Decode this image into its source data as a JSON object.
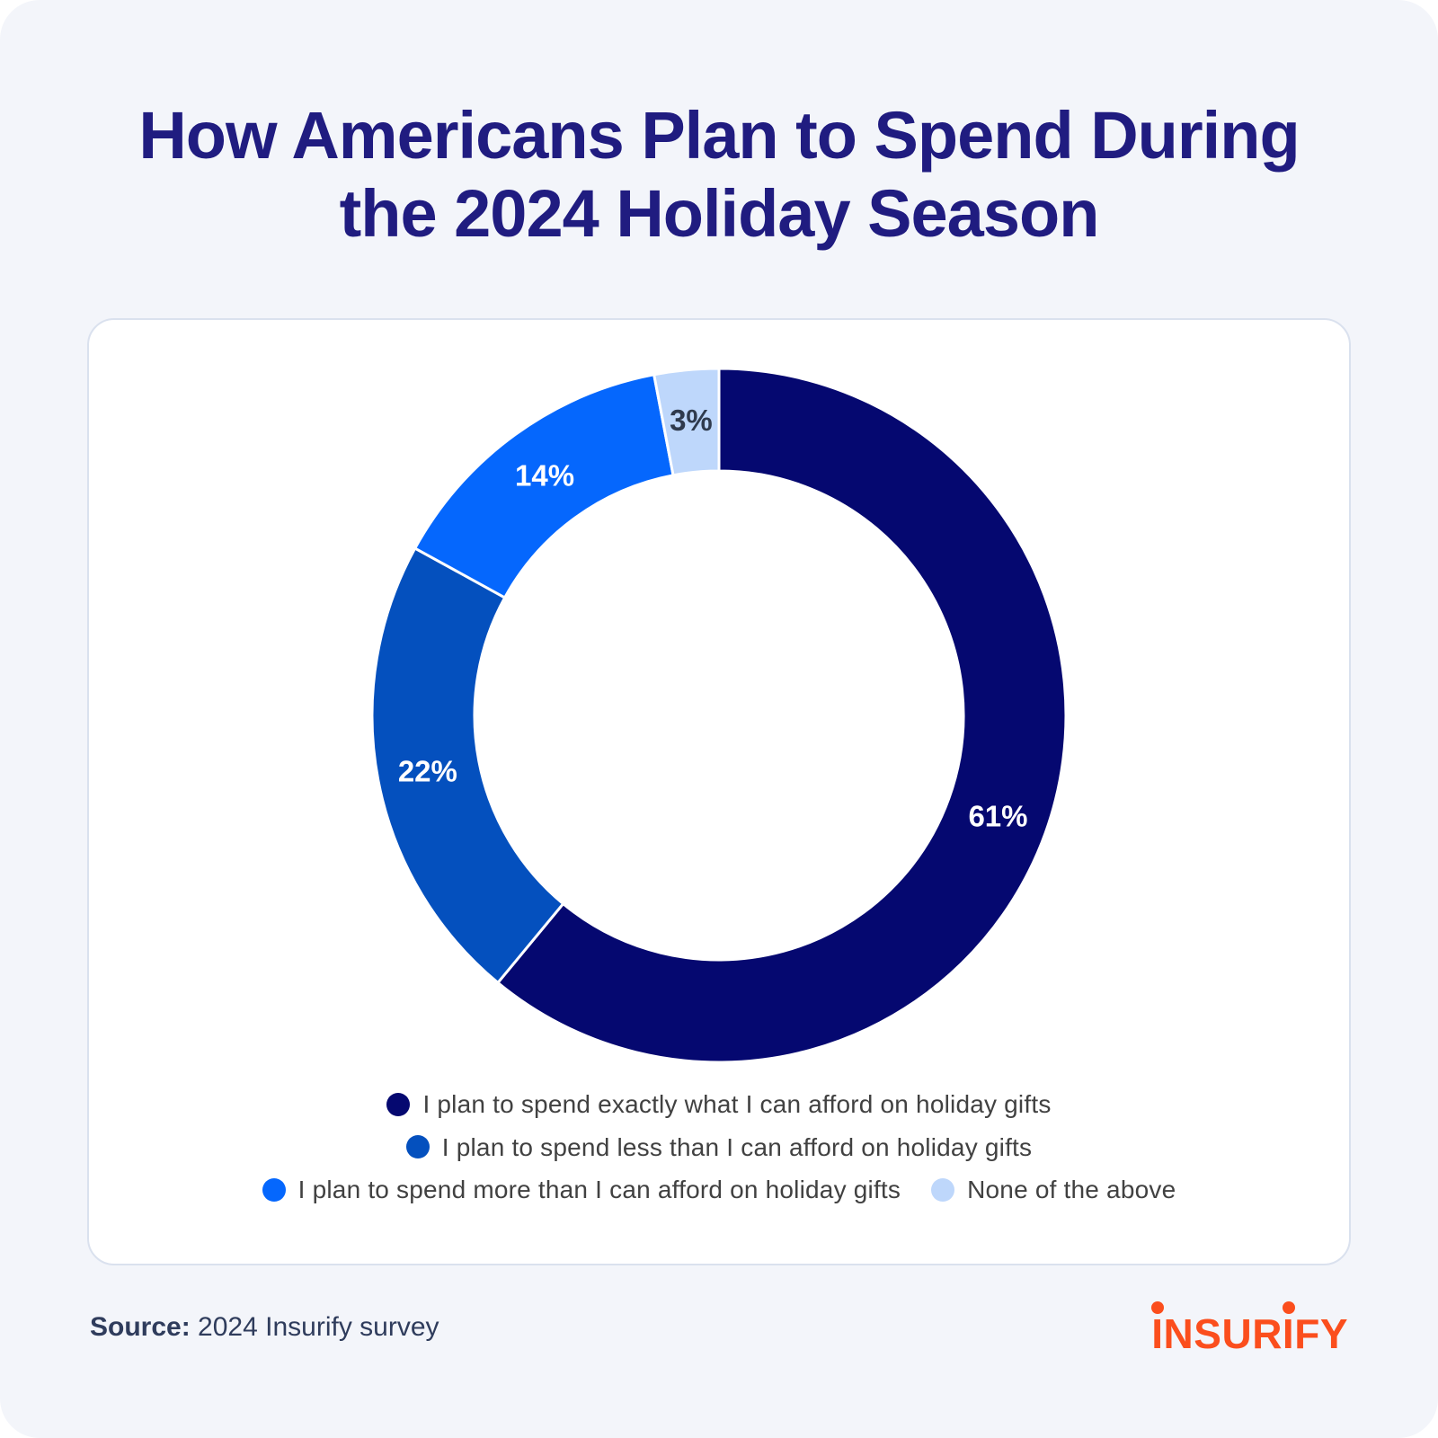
{
  "page": {
    "title": "How Americans Plan to Spend During the 2024 Holiday Season"
  },
  "chart_data": {
    "type": "pie",
    "variant": "donut",
    "title": "How Americans Plan to Spend During the 2024 Holiday Season",
    "start_angle_deg": 0,
    "direction": "clockwise",
    "legend_position": "bottom",
    "total": 100,
    "segments": [
      {
        "label": "I plan to spend exactly what I can afford on holiday gifts",
        "value": 61,
        "value_label": "61%",
        "color": "#050870",
        "value_label_color": "#FFFFFF"
      },
      {
        "label": "I plan to spend less than I can afford on holiday gifts",
        "value": 22,
        "value_label": "22%",
        "color": "#0450BE",
        "value_label_color": "#FFFFFF"
      },
      {
        "label": "I plan to spend more than I can afford on holiday gifts",
        "value": 14,
        "value_label": "14%",
        "color": "#0567FD",
        "value_label_color": "#FFFFFF"
      },
      {
        "label": "None of the above",
        "value": 3,
        "value_label": "3%",
        "color": "#BED7FB",
        "value_label_color": "#2F3A4D"
      }
    ]
  },
  "footer": {
    "source_label": "Source:",
    "source_text": "2024 Insurify survey",
    "logo_text": "INSURIFY"
  },
  "colors": {
    "background": "#F3F5FA",
    "card_background": "#FFFFFF",
    "card_border": "#DAE1EE",
    "title": "#201C80",
    "legend_text": "#414141",
    "source_text": "#2F3C5C",
    "logo": "#FB4E1D"
  }
}
